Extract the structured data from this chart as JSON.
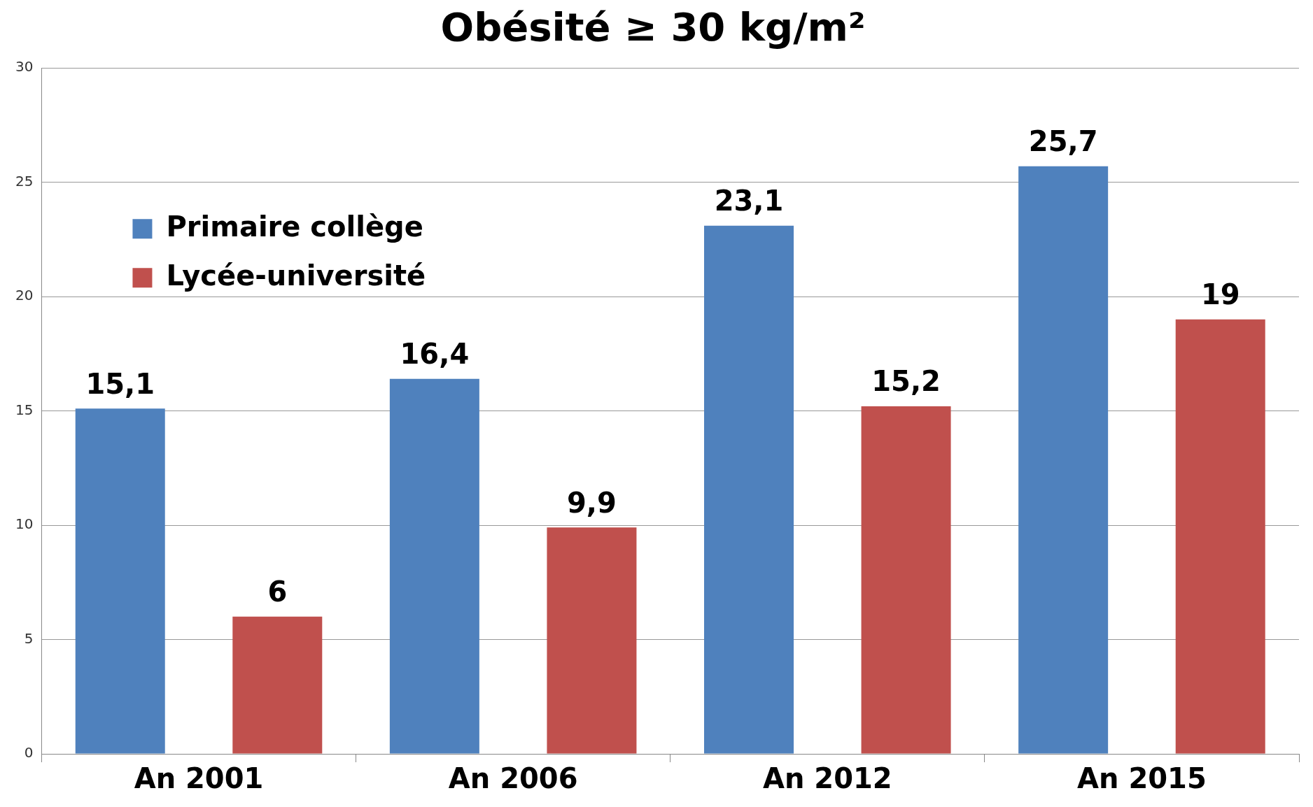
{
  "chart_data": {
    "type": "bar",
    "title": "Obésité ≥ 30 kg/m²",
    "categories": [
      "An 2001",
      "An 2006",
      "An 2012",
      "An 2015"
    ],
    "series": [
      {
        "name": "Primaire collège",
        "color": "#4f81bd",
        "values": [
          15.1,
          16.4,
          23.1,
          25.7
        ],
        "value_labels": [
          "15,1",
          "16,4",
          "23,1",
          "25,7"
        ]
      },
      {
        "name": "Lycée-université",
        "color": "#c0504d",
        "values": [
          6,
          9.9,
          15.2,
          19
        ],
        "value_labels": [
          "6",
          "9,9",
          "15,2",
          "19"
        ]
      }
    ],
    "ylim": [
      0,
      30
    ],
    "yticks": [
      0,
      5,
      10,
      15,
      20,
      25,
      30
    ],
    "grid": "y",
    "legend": "top left"
  }
}
